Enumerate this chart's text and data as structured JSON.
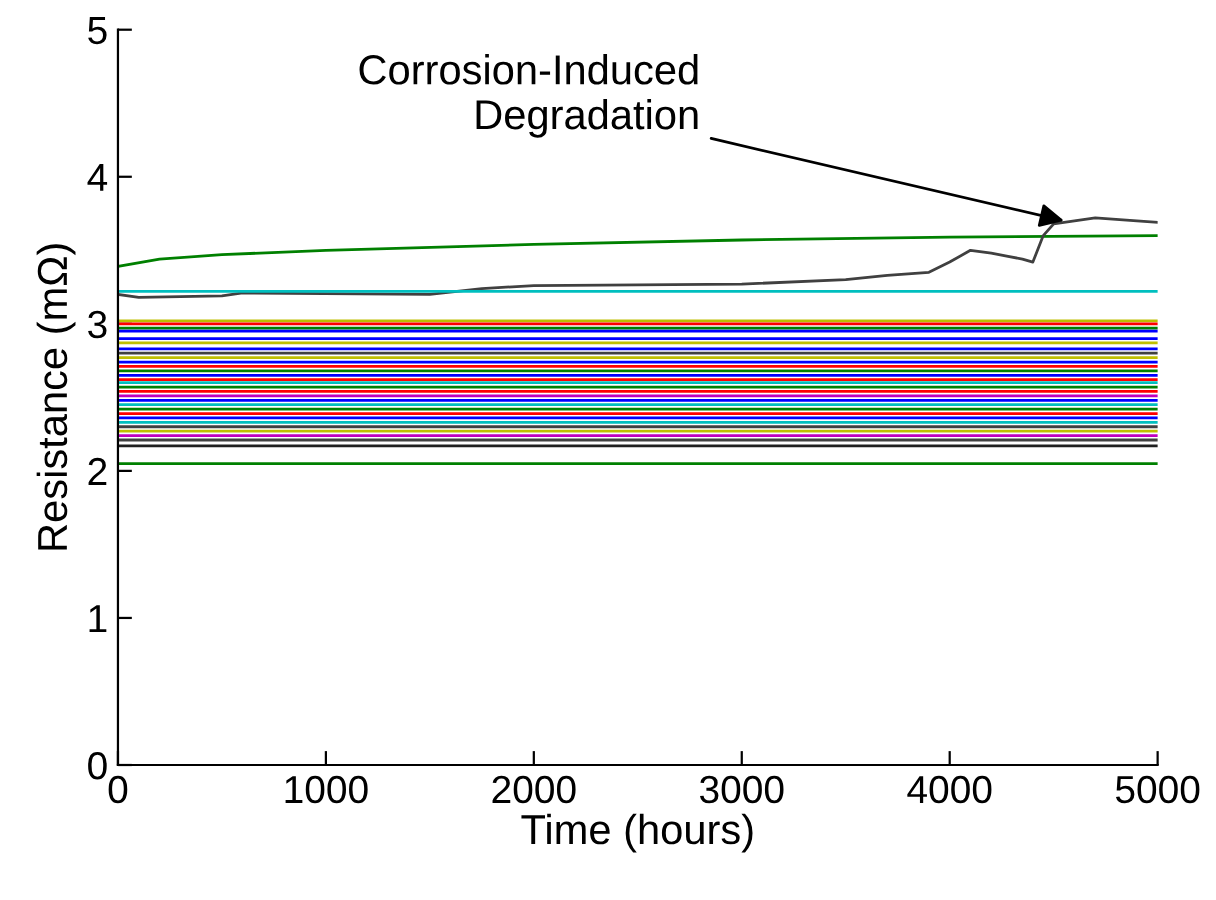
{
  "chart_data": {
    "type": "line",
    "xlabel": "Time (hours)",
    "ylabel": "Resistance (mΩ)",
    "xlim": [
      0,
      5000
    ],
    "ylim": [
      0,
      5
    ],
    "xticks": [
      0,
      1000,
      2000,
      3000,
      4000,
      5000
    ],
    "yticks": [
      0,
      1,
      2,
      3,
      4,
      5
    ],
    "grid": false,
    "marker": "none",
    "line_style": "solid",
    "annotations": [
      {
        "text": "Corrosion-Induced\nDegradation",
        "x": 4550,
        "y": 3.7
      }
    ],
    "series": [
      {
        "color": "#008000",
        "x": [
          0,
          200,
          500,
          1000,
          2000,
          3000,
          4000,
          5000
        ],
        "values": [
          3.39,
          3.44,
          3.47,
          3.5,
          3.54,
          3.57,
          3.59,
          3.6
        ]
      },
      {
        "color": "#404040",
        "x": [
          0,
          100,
          500,
          600,
          1500,
          1750,
          2000,
          3000,
          3500,
          3700,
          3900,
          4000,
          4100,
          4200,
          4350,
          4400,
          4450,
          4500,
          4700,
          4900,
          5000
        ],
        "values": [
          3.2,
          3.18,
          3.19,
          3.21,
          3.2,
          3.24,
          3.26,
          3.27,
          3.3,
          3.33,
          3.35,
          3.42,
          3.5,
          3.48,
          3.44,
          3.42,
          3.6,
          3.68,
          3.72,
          3.7,
          3.69
        ]
      },
      {
        "color": "#00bfbf",
        "x": [
          0,
          5000
        ],
        "values": [
          3.22,
          3.22
        ]
      },
      {
        "color": "#bfbf00",
        "x": [
          0,
          5000
        ],
        "values": [
          3.02,
          3.02
        ]
      },
      {
        "color": "#ff0000",
        "x": [
          0,
          5000
        ],
        "values": [
          3.0,
          3.0
        ]
      },
      {
        "color": "#008000",
        "x": [
          0,
          5000
        ],
        "values": [
          2.97,
          2.97
        ]
      },
      {
        "color": "#0000ff",
        "x": [
          0,
          5000
        ],
        "values": [
          2.95,
          2.95
        ]
      },
      {
        "color": "#0000ff",
        "x": [
          0,
          5000
        ],
        "values": [
          2.9,
          2.9
        ]
      },
      {
        "color": "#bfbf00",
        "x": [
          0,
          5000
        ],
        "values": [
          2.87,
          2.87
        ]
      },
      {
        "color": "#0000ff",
        "x": [
          0,
          5000
        ],
        "values": [
          2.83,
          2.83
        ]
      },
      {
        "color": "#404040",
        "x": [
          0,
          5000
        ],
        "values": [
          2.8,
          2.8
        ]
      },
      {
        "color": "#bfbf00",
        "x": [
          0,
          5000
        ],
        "values": [
          2.77,
          2.77
        ]
      },
      {
        "color": "#0000ff",
        "x": [
          0,
          5000
        ],
        "values": [
          2.74,
          2.74
        ]
      },
      {
        "color": "#ff0000",
        "x": [
          0,
          5000
        ],
        "values": [
          2.71,
          2.71
        ]
      },
      {
        "color": "#008000",
        "x": [
          0,
          5000
        ],
        "values": [
          2.68,
          2.68
        ]
      },
      {
        "color": "#0000ff",
        "x": [
          0,
          5000
        ],
        "values": [
          2.65,
          2.65
        ]
      },
      {
        "color": "#ff0000",
        "x": [
          0,
          5000
        ],
        "values": [
          2.62,
          2.62
        ]
      },
      {
        "color": "#00bfbf",
        "x": [
          0,
          5000
        ],
        "values": [
          2.6,
          2.6
        ]
      },
      {
        "color": "#008000",
        "x": [
          0,
          5000
        ],
        "values": [
          2.57,
          2.57
        ]
      },
      {
        "color": "#ff0000",
        "x": [
          0,
          5000
        ],
        "values": [
          2.54,
          2.54
        ]
      },
      {
        "color": "#bf00bf",
        "x": [
          0,
          5000
        ],
        "values": [
          2.51,
          2.51
        ]
      },
      {
        "color": "#0000ff",
        "x": [
          0,
          5000
        ],
        "values": [
          2.48,
          2.48
        ]
      },
      {
        "color": "#00bfbf",
        "x": [
          0,
          5000
        ],
        "values": [
          2.45,
          2.45
        ]
      },
      {
        "color": "#008000",
        "x": [
          0,
          5000
        ],
        "values": [
          2.42,
          2.42
        ]
      },
      {
        "color": "#ff0000",
        "x": [
          0,
          5000
        ],
        "values": [
          2.39,
          2.39
        ]
      },
      {
        "color": "#0000ff",
        "x": [
          0,
          5000
        ],
        "values": [
          2.36,
          2.36
        ]
      },
      {
        "color": "#00bfbf",
        "x": [
          0,
          5000
        ],
        "values": [
          2.33,
          2.33
        ]
      },
      {
        "color": "#404040",
        "x": [
          0,
          5000
        ],
        "values": [
          2.3,
          2.3
        ]
      },
      {
        "color": "#bfbf00",
        "x": [
          0,
          5000
        ],
        "values": [
          2.27,
          2.27
        ]
      },
      {
        "color": "#bf00bf",
        "x": [
          0,
          5000
        ],
        "values": [
          2.24,
          2.24
        ]
      },
      {
        "color": "#404040",
        "x": [
          0,
          5000
        ],
        "values": [
          2.21,
          2.21
        ]
      },
      {
        "color": "#202020",
        "x": [
          0,
          5000
        ],
        "values": [
          2.17,
          2.17
        ]
      },
      {
        "color": "#008000",
        "x": [
          0,
          5000
        ],
        "values": [
          2.05,
          2.05
        ]
      }
    ]
  }
}
